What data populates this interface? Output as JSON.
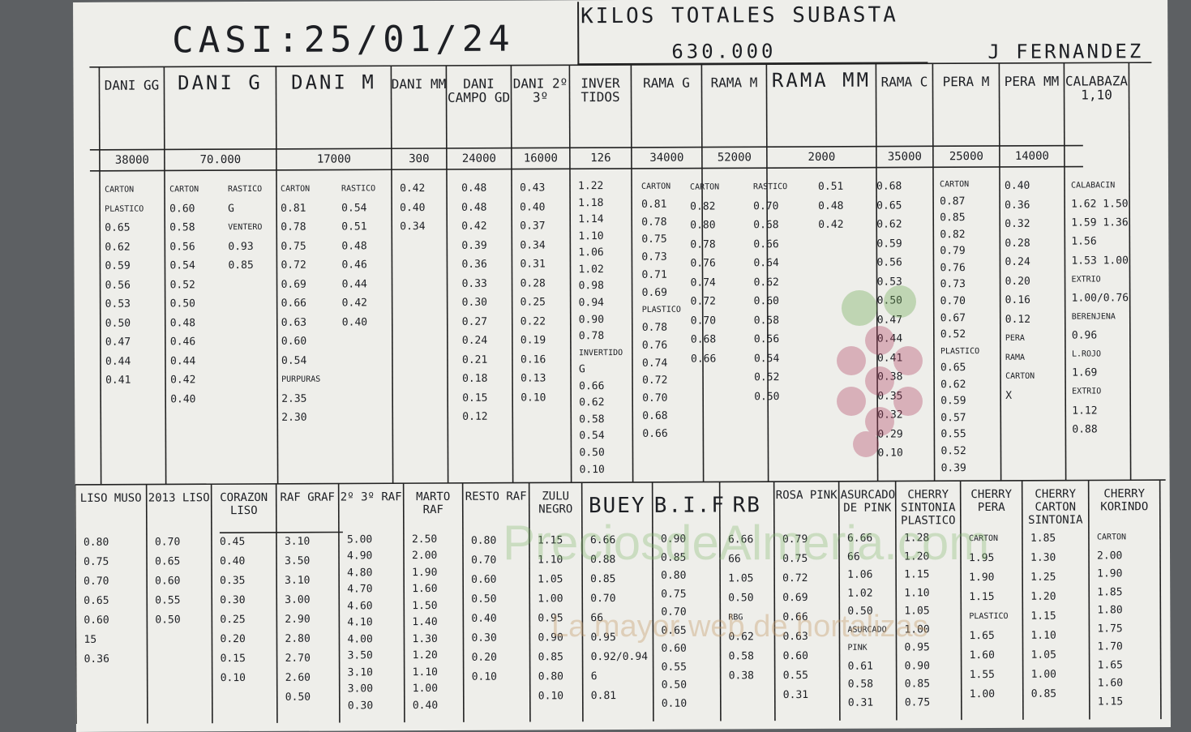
{
  "header": {
    "title": "CASI:25/01/24",
    "totals_label": "KILOS TOTALES SUBASTA",
    "totals_value": "630.000",
    "author": "J FERNANDEZ"
  },
  "top_headers": [
    "DANI GG",
    "DANI G",
    "DANI M",
    "DANI MM",
    "DANI CAMPO GD",
    "DANI 2º 3º",
    "INVER TIDOS",
    "RAMA G",
    "RAMA M",
    "RAMA MM",
    "RAMA C",
    "PERA M",
    "PERA MM",
    "CALABAZA 1,10"
  ],
  "top_kilos": [
    "38000",
    "70.000",
    "17000",
    "300",
    "24000",
    "16000",
    "126",
    "34000",
    "52000",
    "2000",
    "35000",
    "25000",
    "14000"
  ],
  "top_cols": [
    {
      "lines": [
        "CARTON",
        "PLASTICO",
        "0.65",
        "0.62",
        "0.59",
        "0.56",
        "0.53",
        "0.50",
        "0.47",
        "0.44",
        "0.41"
      ]
    },
    {
      "lines": [
        "CARTON",
        "0.60",
        "0.58",
        "0.56",
        "0.54",
        "0.52",
        "0.50",
        "0.48",
        "0.46",
        "0.44",
        "0.42",
        "0.40"
      ]
    },
    {
      "lines": [
        "RASTICO",
        "",
        "G",
        "VENTERO",
        "0.93",
        "0.85"
      ]
    },
    {
      "lines": [
        "CARTON",
        "0.81",
        "0.78",
        "0.75",
        "0.72",
        "0.69",
        "0.66",
        "0.63",
        "0.60",
        "0.54",
        "PURPURAS",
        "2.35",
        "2.30"
      ]
    },
    {
      "lines": [
        "RASTICO",
        "0.54",
        "0.51",
        "0.48",
        "0.46",
        "0.44",
        "0.42",
        "0.40"
      ]
    },
    {
      "lines": [
        "0.42",
        "0.40",
        "0.34"
      ]
    },
    {
      "lines": [
        "0.48",
        "0.48",
        "0.42",
        "0.39",
        "0.36",
        "0.33",
        "0.30",
        "0.27",
        "0.24",
        "0.21",
        "0.18",
        "0.15",
        "0.12"
      ]
    },
    {
      "lines": [
        "0.43",
        "0.40",
        "0.37",
        "0.34",
        "0.31",
        "0.28",
        "0.25",
        "0.22",
        "0.19",
        "0.16",
        "0.13",
        "0.10"
      ]
    },
    {
      "lines": [
        "1.22",
        "1.18",
        "1.14",
        "1.10",
        "1.06",
        "1.02",
        "0.98",
        "0.94",
        "0.90",
        "0.78",
        "INVERTIDO",
        "G",
        "0.66",
        "0.62",
        "0.58",
        "0.54",
        "0.50",
        "0.10"
      ]
    },
    {
      "lines": [
        "CARTON",
        "0.81",
        "0.78",
        "0.75",
        "0.73",
        "0.71",
        "0.69",
        "",
        "",
        "PLASTICO",
        "0.78",
        "0.76",
        "0.74",
        "0.72",
        "0.70",
        "0.68",
        "0.66"
      ]
    },
    {
      "lines": [
        "CARTON",
        "0.82",
        "0.80",
        "0.78",
        "0.76",
        "0.74",
        "0.72",
        "0.70",
        "0.68",
        "0.66"
      ]
    },
    {
      "lines": [
        "RASTICO",
        "0.70",
        "0.68",
        "0.66",
        "0.64",
        "0.62",
        "0.60",
        "0.58",
        "0.56",
        "0.54",
        "0.52",
        "0.50"
      ]
    },
    {
      "lines": [
        "0.51",
        "0.48",
        "0.42"
      ]
    },
    {
      "lines": [
        "0.68",
        "0.65",
        "0.62",
        "0.59",
        "0.56",
        "0.53",
        "0.50",
        "0.47",
        "0.44",
        "0.41",
        "0.38",
        "0.35",
        "0.32",
        "0.29",
        "0.10"
      ]
    },
    {
      "lines": [
        "CARTON",
        "0.87",
        "0.85",
        "0.82",
        "0.79",
        "0.76",
        "0.73",
        "0.70",
        "0.67",
        "0.52",
        "PLASTICO",
        "0.65",
        "0.62",
        "0.59",
        "0.57",
        "0.55",
        "0.52",
        "0.39"
      ]
    },
    {
      "lines": [
        "0.40",
        "0.36",
        "0.32",
        "0.28",
        "0.24",
        "0.20",
        "0.16",
        "0.12",
        "",
        "PERA",
        "RAMA",
        "CARTON",
        "X"
      ]
    },
    {
      "lines": [
        "CALABACIN",
        "1.62 1.50",
        "1.59 1.36",
        "1.56",
        "1.53 1.00",
        "EXTRIO",
        "1.00/0.76",
        "BERENJENA",
        "0.96",
        "",
        "L.ROJO",
        "1.69",
        "",
        "EXTRIO",
        "1.12",
        "0.88"
      ]
    }
  ],
  "bottom_headers": [
    "LISO MUSO",
    "2013 LISO",
    "CORAZON LISO",
    "RAF GRAF",
    "2º 3º RAF",
    "MARTO RAF",
    "RESTO RAF",
    "ZULU NEGRO",
    "BUEY",
    "B.I.F",
    "RB",
    "ROSA PINK",
    "ASURCADO DE PINK",
    "CHERRY SINTONIA PLASTICO",
    "CHERRY PERA",
    "CHERRY CARTON SINTONIA",
    "CHERRY KORINDO"
  ],
  "bottom_cols": [
    {
      "lines": [
        "0.80",
        "0.75",
        "0.70",
        "0.65",
        "0.60",
        "15",
        "",
        "0.36"
      ]
    },
    {
      "lines": [
        "",
        "0.70",
        "0.65",
        "0.60",
        "0.55",
        "0.50"
      ]
    },
    {
      "lines": [
        "0.45",
        "0.40",
        "0.35",
        "0.30",
        "0.25",
        "0.20",
        "0.15",
        "0.10"
      ]
    },
    {
      "lines": [
        "3.10",
        "3.50",
        "3.10",
        "3.00",
        "2.90",
        "2.80",
        "2.70",
        "2.60",
        "0.50"
      ]
    },
    {
      "lines": [
        "5.00",
        "4.90",
        "4.80",
        "4.70",
        "4.60",
        "4.10",
        "4.00",
        "3.50",
        "3.10",
        "3.00",
        "0.30"
      ]
    },
    {
      "lines": [
        "2.50",
        "2.00",
        "1.90",
        "1.60",
        "1.50",
        "1.40",
        "1.30",
        "1.20",
        "1.10",
        "1.00",
        "0.40"
      ]
    },
    {
      "lines": [
        "0.80",
        "0.70",
        "0.60",
        "0.50",
        "0.40",
        "0.30",
        "0.20",
        "0.10"
      ]
    },
    {
      "lines": [
        "1.15",
        "1.10",
        "1.05",
        "1.00",
        "0.95",
        "0.90",
        "0.85",
        "0.80",
        "0.10"
      ]
    },
    {
      "lines": [
        "6.66",
        "0.88",
        "0.85",
        "0.70",
        "66",
        "0.95",
        "0.92/0.94",
        "6",
        "0.81"
      ]
    },
    {
      "lines": [
        "0.90",
        "0.85",
        "0.80",
        "0.75",
        "0.70",
        "0.65",
        "0.60",
        "0.55",
        "0.50",
        "0.10"
      ]
    },
    {
      "lines": [
        "6.66",
        "66",
        "1.05",
        "",
        "0.50",
        "RBG",
        "0.62",
        "0.58",
        "0.38"
      ]
    },
    {
      "lines": [
        "0.79",
        "0.75",
        "0.72",
        "0.69",
        "0.66",
        "0.63",
        "0.60",
        "0.55",
        "0.31"
      ]
    },
    {
      "lines": [
        "6.66",
        "66",
        "1.06",
        "1.02",
        "0.50",
        "ASURCADO",
        "PINK",
        "0.61",
        "0.58",
        "0.31"
      ]
    },
    {
      "lines": [
        "1.28",
        "1.20",
        "1.15",
        "1.10",
        "1.05",
        "1.00",
        "0.95",
        "0.90",
        "0.85",
        "0.75"
      ]
    },
    {
      "lines": [
        "CARTON",
        "1.95",
        "1.90",
        "1.15",
        "PLASTICO",
        "1.65",
        "1.60",
        "1.55",
        "1.00"
      ]
    },
    {
      "lines": [
        "1.85",
        "1.30",
        "1.25",
        "1.20",
        "1.15",
        "1.10",
        "1.05",
        "1.00",
        "0.85"
      ]
    },
    {
      "lines": [
        "CARTON",
        "2.00",
        "1.90",
        "1.85",
        "1.80",
        "1.75",
        "1.70",
        "1.65",
        "1.60",
        "1.15"
      ]
    }
  ],
  "watermark": {
    "site": "PreciosdeAlmeria.com",
    "tagline": "La mayor web de hortalizas"
  },
  "colors": {
    "paper": "#eeeeea",
    "ink": "#1d1f24",
    "watermark": "#7fb86a",
    "background": "#5d6063"
  }
}
